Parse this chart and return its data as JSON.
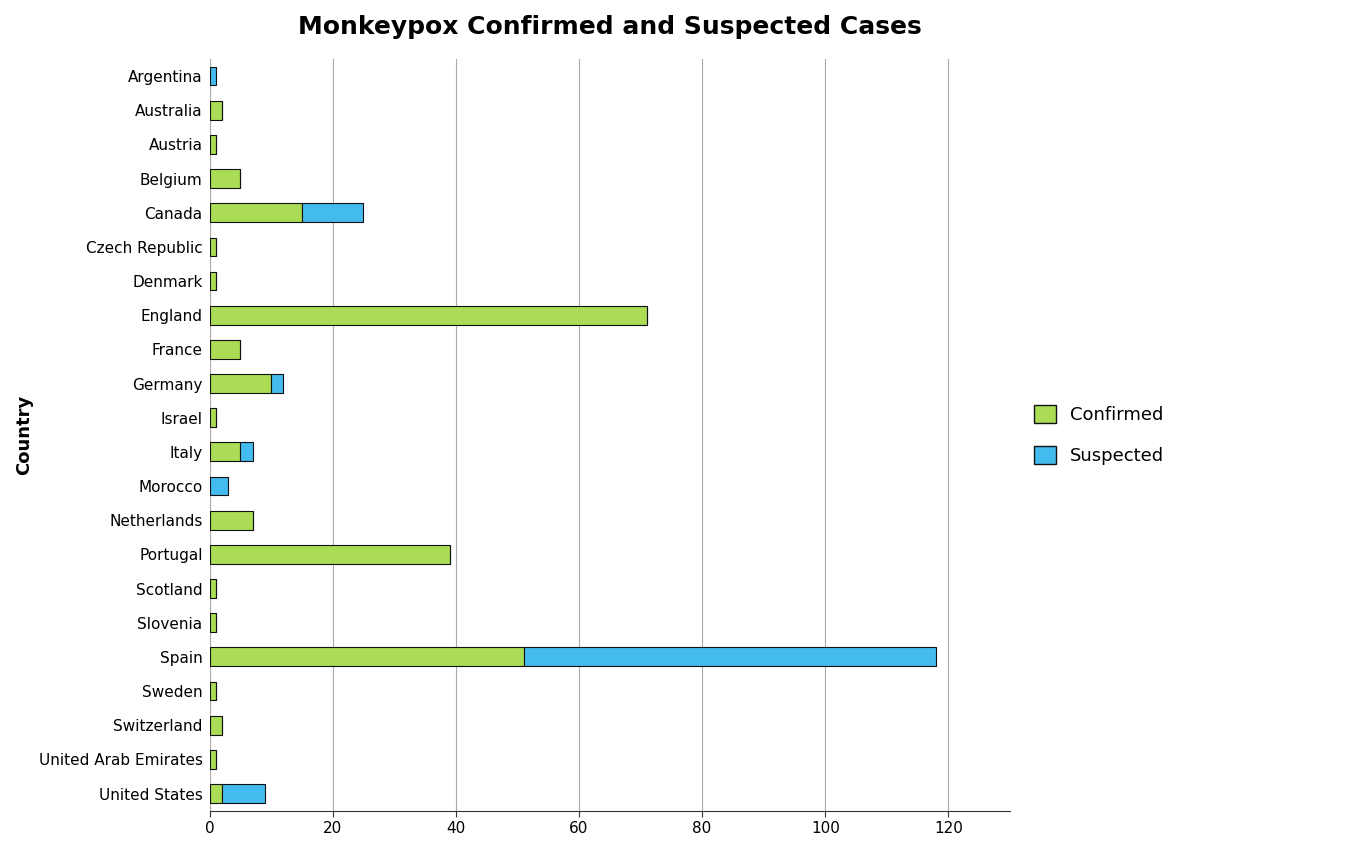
{
  "title": "Monkeypox Confirmed and Suspected Cases",
  "xlabel": "",
  "ylabel": "Country",
  "countries": [
    "Argentina",
    "Australia",
    "Austria",
    "Belgium",
    "Canada",
    "Czech Republic",
    "Denmark",
    "England",
    "France",
    "Germany",
    "Israel",
    "Italy",
    "Morocco",
    "Netherlands",
    "Portugal",
    "Scotland",
    "Slovenia",
    "Spain",
    "Sweden",
    "Switzerland",
    "United Arab Emirates",
    "United States"
  ],
  "confirmed": [
    0,
    2,
    1,
    5,
    15,
    1,
    1,
    71,
    5,
    10,
    1,
    5,
    0,
    7,
    39,
    1,
    1,
    51,
    1,
    2,
    1,
    2
  ],
  "suspected": [
    1,
    0,
    0,
    0,
    10,
    0,
    0,
    0,
    0,
    2,
    0,
    2,
    3,
    0,
    0,
    0,
    0,
    67,
    0,
    0,
    0,
    7
  ],
  "confirmed_color": "#aadd55",
  "suspected_color": "#44bbee",
  "bar_edgecolor": "#111111",
  "background_color": "#ffffff",
  "grid_color": "#aaaaaa",
  "xlim": [
    0,
    130
  ],
  "xticks": [
    0,
    20,
    40,
    60,
    80,
    100,
    120
  ],
  "title_fontsize": 18,
  "axis_label_fontsize": 13,
  "tick_fontsize": 11,
  "legend_fontsize": 13,
  "bar_height": 0.55
}
